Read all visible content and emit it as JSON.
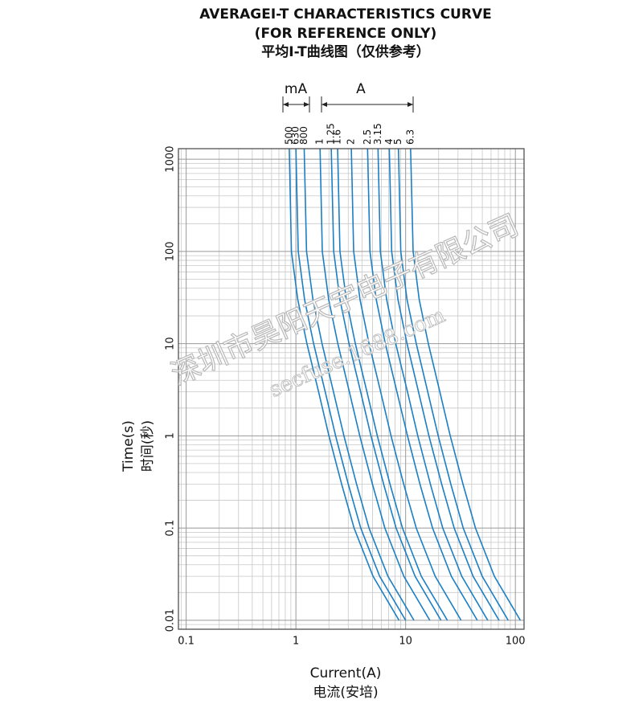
{
  "chart_data": {
    "type": "line",
    "title": "AVERAGEI-T CHARACTERISTICS CURVE",
    "subtitle": "(FOR REFERENCE ONLY)",
    "subtitle_cn": "平均I-T曲线图（仅供参考）",
    "unit_ma": "mA",
    "unit_a": "A",
    "xlabel": "Current(A)",
    "xlabel_cn": "电流(安培)",
    "ylabel": "Time(s)",
    "ylabel_cn": "时间(秒)",
    "watermark": "深圳市昊阳天宇电子有限公司",
    "watermark_url": "secfuse.1688.com",
    "xscale": "log",
    "yscale": "log",
    "grid": true,
    "minor_grid": true,
    "xlim": [
      0.085,
      120
    ],
    "ylim": [
      0.008,
      1300
    ],
    "xticks": [
      0.1,
      1,
      10,
      100
    ],
    "yticks": [
      0.01,
      0.1,
      1,
      10,
      100,
      1000
    ],
    "series": [
      {
        "name": "500",
        "color": "#1a7fc4",
        "x": [
          0.87,
          0.91,
          1.04,
          1.26,
          1.61,
          2.0,
          2.61,
          3.39,
          5.05,
          8.7
        ],
        "values": [
          1300,
          100,
          30,
          10,
          3,
          1,
          0.3,
          0.1,
          0.03,
          0.01
        ]
      },
      {
        "name": "630",
        "color": "#1a7fc4",
        "x": [
          1.0,
          1.05,
          1.2,
          1.45,
          1.85,
          2.3,
          3.0,
          3.9,
          5.8,
          10
        ],
        "values": [
          1300,
          100,
          30,
          10,
          3,
          1,
          0.3,
          0.1,
          0.03,
          0.01
        ]
      },
      {
        "name": "800",
        "color": "#1a7fc4",
        "x": [
          1.19,
          1.25,
          1.43,
          1.73,
          2.2,
          2.74,
          3.57,
          4.64,
          6.9,
          11.9
        ],
        "values": [
          1300,
          100,
          30,
          10,
          3,
          1,
          0.3,
          0.1,
          0.03,
          0.01
        ]
      },
      {
        "name": "1",
        "color": "#1a7fc4",
        "x": [
          1.66,
          1.74,
          1.99,
          2.41,
          3.07,
          3.82,
          4.98,
          6.47,
          9.63,
          16.6
        ],
        "values": [
          1300,
          100,
          30,
          10,
          3,
          1,
          0.3,
          0.1,
          0.03,
          0.01
        ]
      },
      {
        "name": "1.25",
        "color": "#1a7fc4",
        "x": [
          2.1,
          2.21,
          2.52,
          3.05,
          3.89,
          4.83,
          6.3,
          8.19,
          12.2,
          21
        ],
        "values": [
          1300,
          100,
          30,
          10,
          3,
          1,
          0.3,
          0.1,
          0.03,
          0.01
        ]
      },
      {
        "name": "1.6",
        "color": "#1a7fc4",
        "x": [
          2.4,
          2.52,
          2.88,
          3.48,
          4.44,
          5.52,
          7.2,
          9.36,
          13.9,
          24
        ],
        "values": [
          1300,
          100,
          30,
          10,
          3,
          1,
          0.3,
          0.1,
          0.03,
          0.01
        ]
      },
      {
        "name": "2",
        "color": "#1a7fc4",
        "x": [
          3.2,
          3.36,
          3.84,
          4.64,
          5.92,
          7.36,
          9.6,
          12.5,
          18.6,
          32
        ],
        "values": [
          1300,
          100,
          30,
          10,
          3,
          1,
          0.3,
          0.1,
          0.03,
          0.01
        ]
      },
      {
        "name": "2.5",
        "color": "#1a7fc4",
        "x": [
          4.5,
          4.73,
          5.4,
          6.53,
          8.33,
          10.4,
          13.5,
          17.6,
          26.1,
          45
        ],
        "values": [
          1300,
          100,
          30,
          10,
          3,
          1,
          0.3,
          0.1,
          0.03,
          0.01
        ]
      },
      {
        "name": "3.15",
        "color": "#1a7fc4",
        "x": [
          5.6,
          5.88,
          6.72,
          8.12,
          10.4,
          12.9,
          16.8,
          21.8,
          32.5,
          56
        ],
        "values": [
          1300,
          100,
          30,
          10,
          3,
          1,
          0.3,
          0.1,
          0.03,
          0.01
        ]
      },
      {
        "name": "4",
        "color": "#1a7fc4",
        "x": [
          7.1,
          7.46,
          8.52,
          10.3,
          13.1,
          16.3,
          21.3,
          27.7,
          41.2,
          71
        ],
        "values": [
          1300,
          100,
          30,
          10,
          3,
          1,
          0.3,
          0.1,
          0.03,
          0.01
        ]
      },
      {
        "name": "5",
        "color": "#1a7fc4",
        "x": [
          8.6,
          9.03,
          10.3,
          12.5,
          15.9,
          19.8,
          25.8,
          33.5,
          49.9,
          86
        ],
        "values": [
          1300,
          100,
          30,
          10,
          3,
          1,
          0.3,
          0.1,
          0.03,
          0.01
        ]
      },
      {
        "name": "6.3",
        "color": "#1a7fc4",
        "x": [
          11.1,
          11.7,
          13.3,
          16.1,
          20.5,
          25.5,
          33.3,
          43.3,
          64.4,
          111
        ],
        "values": [
          1300,
          100,
          30,
          10,
          3,
          1,
          0.3,
          0.1,
          0.03,
          0.01
        ]
      }
    ]
  }
}
